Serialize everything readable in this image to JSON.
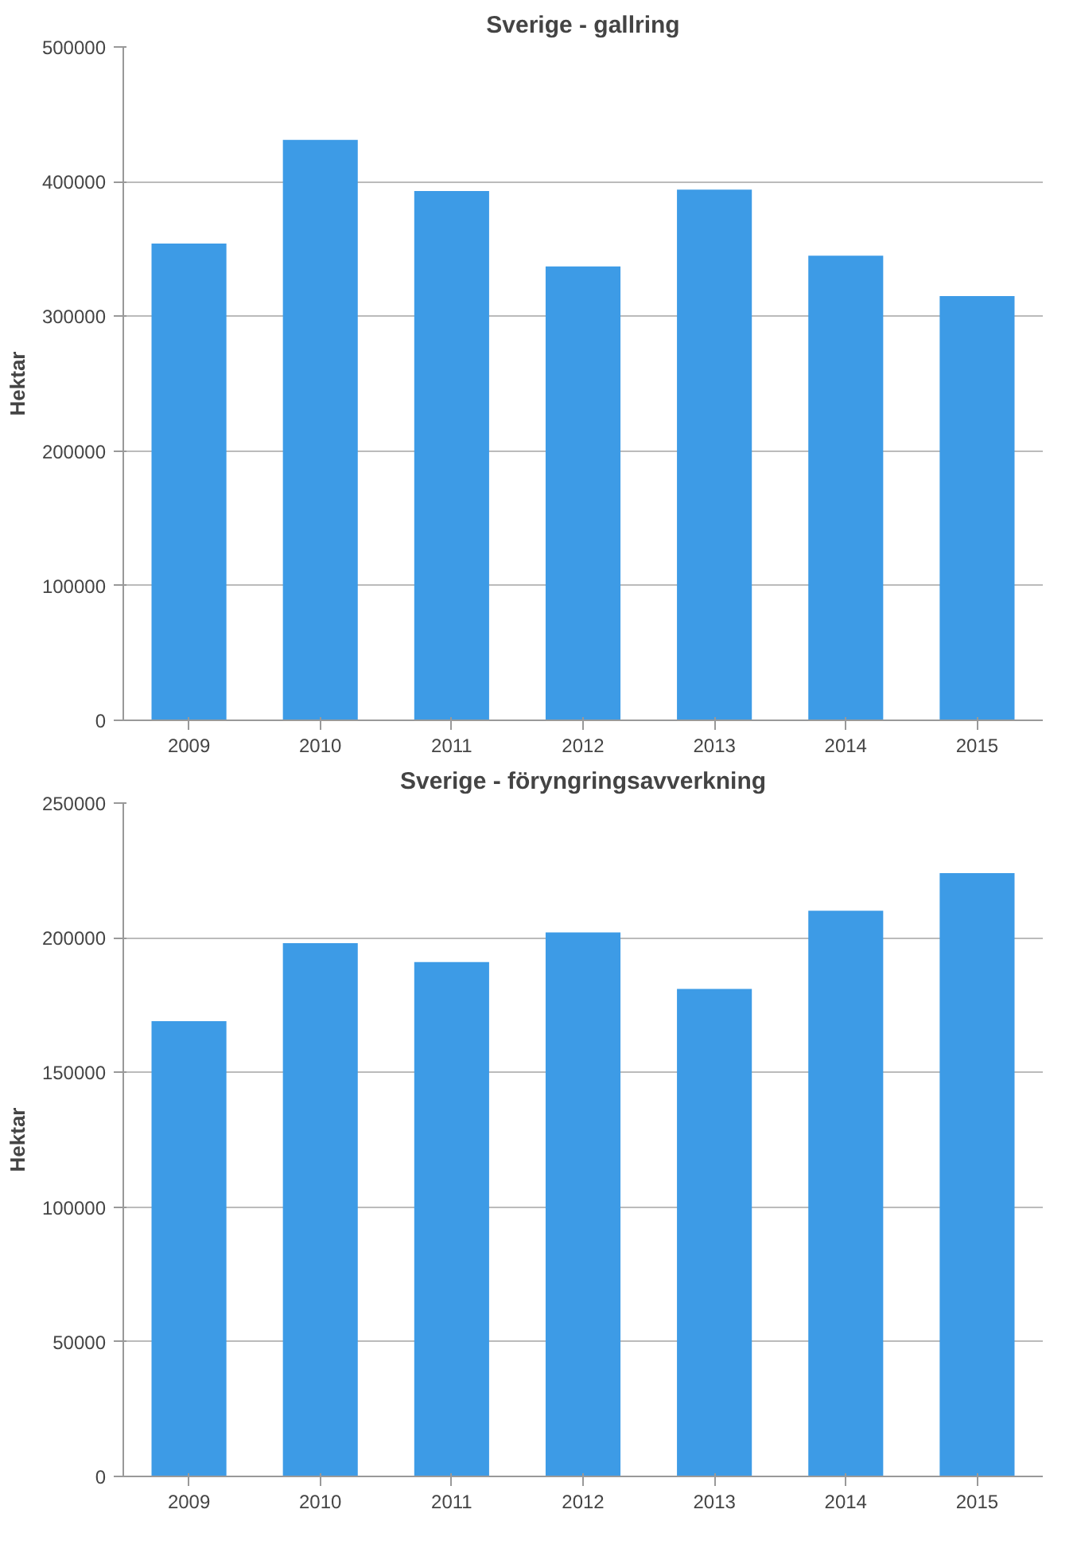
{
  "chart_data": [
    {
      "type": "bar",
      "title": "Sverige - gallring",
      "ylabel": "Hektar",
      "categories": [
        "2009",
        "2010",
        "2011",
        "2012",
        "2013",
        "2014",
        "2015"
      ],
      "values": [
        354000,
        431000,
        393000,
        337000,
        394000,
        345000,
        315000
      ],
      "color": "#3d9be6",
      "ylim": [
        0,
        500000
      ],
      "yticks": [
        0,
        100000,
        200000,
        300000,
        400000,
        500000
      ],
      "grid": "y"
    },
    {
      "type": "bar",
      "title": "Sverige - föryngringsavverkning",
      "ylabel": "Hektar",
      "categories": [
        "2009",
        "2010",
        "2011",
        "2012",
        "2013",
        "2014",
        "2015"
      ],
      "values": [
        169000,
        198000,
        191000,
        202000,
        181000,
        210000,
        224000
      ],
      "color": "#3d9be6",
      "ylim": [
        0,
        250000
      ],
      "yticks": [
        0,
        50000,
        100000,
        150000,
        200000,
        250000
      ],
      "grid": "y"
    }
  ]
}
